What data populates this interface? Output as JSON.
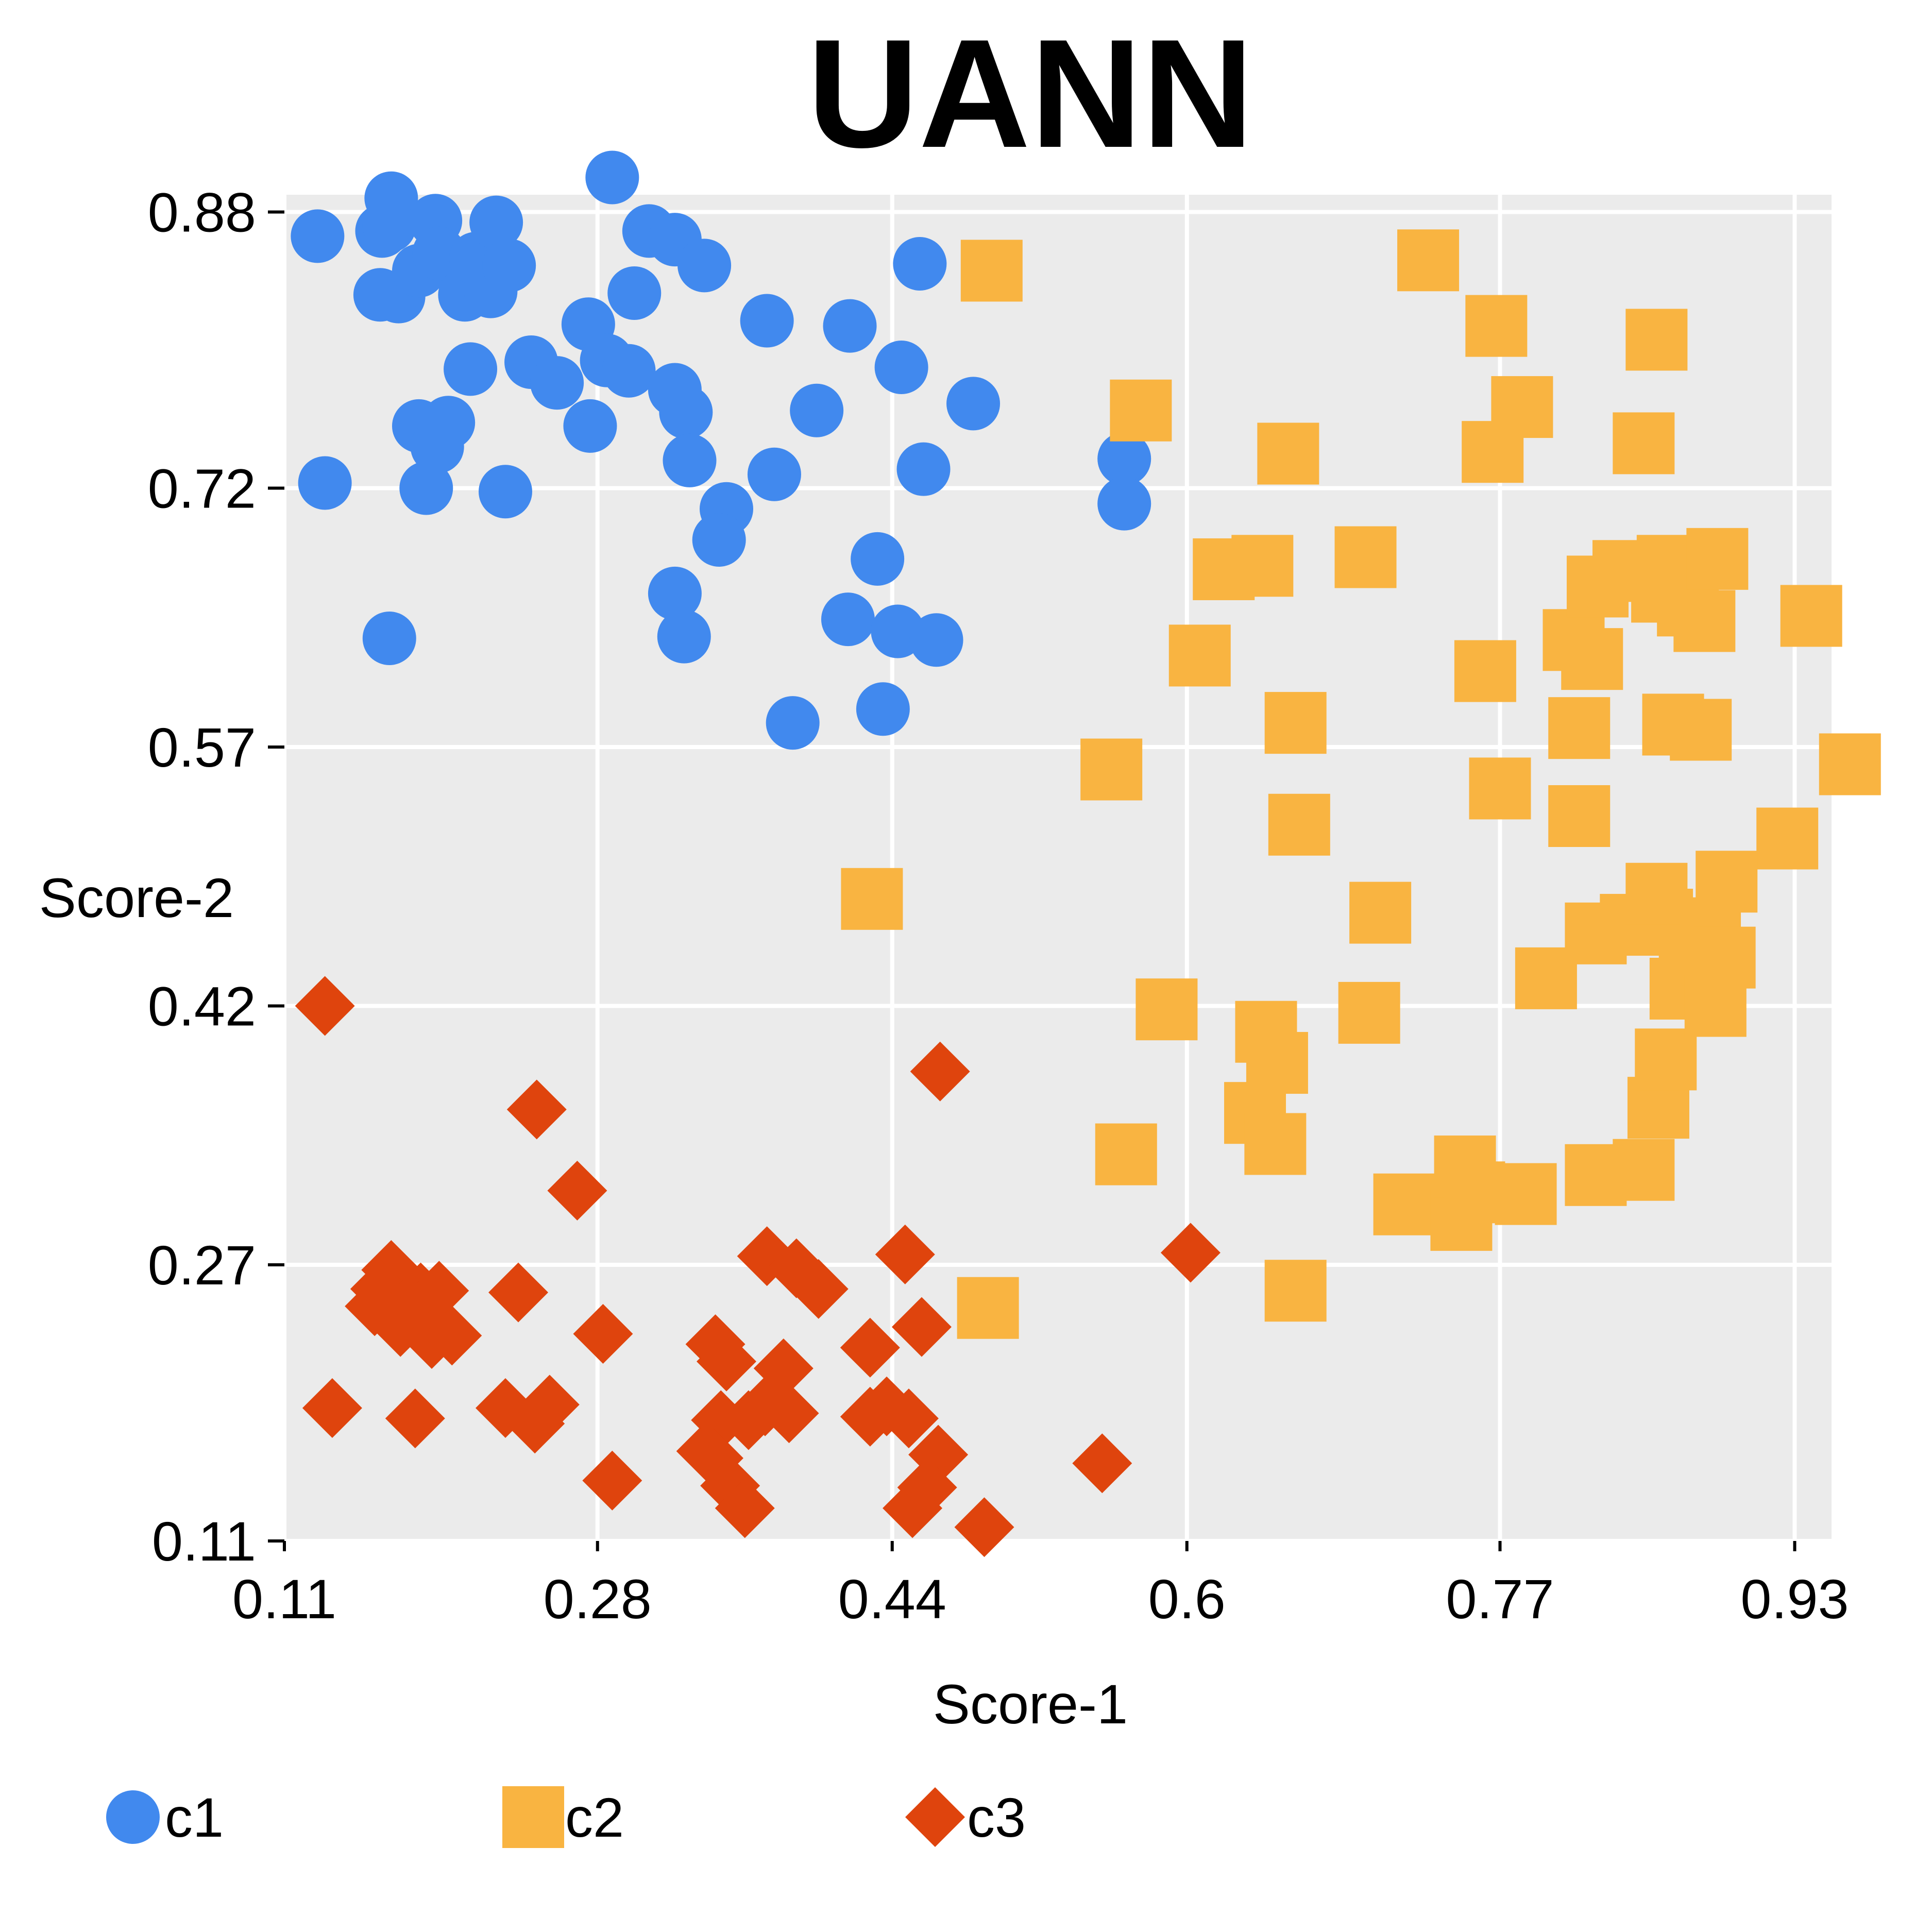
{
  "chart_data": {
    "type": "scatter",
    "title": "UANN",
    "xlabel": "Score-1",
    "ylabel": "Score-2",
    "xlim": [
      0.11,
      0.95
    ],
    "ylim": [
      0.11,
      0.89
    ],
    "x_ticks": [
      0.11,
      0.28,
      0.44,
      0.6,
      0.77,
      0.93
    ],
    "x_tick_labels": [
      "0.11",
      "0.28",
      "0.44",
      "0.6",
      "0.77",
      "0.93"
    ],
    "y_ticks": [
      0.11,
      0.27,
      0.42,
      0.57,
      0.72,
      0.88
    ],
    "y_tick_labels": [
      "0.11",
      "0.27",
      "0.42",
      "0.57",
      "0.72",
      "0.88"
    ],
    "grid": true,
    "legend_position": "bottom-left",
    "series": [
      {
        "name": "c1",
        "marker": "circle",
        "color": "#4189EE",
        "points": [
          [
            0.128,
            0.866
          ],
          [
            0.132,
            0.723
          ],
          [
            0.168,
            0.888
          ],
          [
            0.163,
            0.869
          ],
          [
            0.167,
            0.872
          ],
          [
            0.162,
            0.832
          ],
          [
            0.172,
            0.831
          ],
          [
            0.183,
            0.846
          ],
          [
            0.192,
            0.875
          ],
          [
            0.194,
            0.856
          ],
          [
            0.208,
            0.832
          ],
          [
            0.214,
            0.853
          ],
          [
            0.225,
            0.874
          ],
          [
            0.222,
            0.834
          ],
          [
            0.232,
            0.849
          ],
          [
            0.211,
            0.789
          ],
          [
            0.183,
            0.756
          ],
          [
            0.199,
            0.758
          ],
          [
            0.193,
            0.744
          ],
          [
            0.187,
            0.72
          ],
          [
            0.23,
            0.718
          ],
          [
            0.244,
            0.793
          ],
          [
            0.258,
            0.781
          ],
          [
            0.275,
            0.815
          ],
          [
            0.285,
            0.794
          ],
          [
            0.297,
            0.788
          ],
          [
            0.3,
            0.833
          ],
          [
            0.276,
            0.756
          ],
          [
            0.288,
            0.9
          ],
          [
            0.308,
            0.869
          ],
          [
            0.322,
            0.864
          ],
          [
            0.322,
            0.777
          ],
          [
            0.328,
            0.764
          ],
          [
            0.33,
            0.736
          ],
          [
            0.338,
            0.849
          ],
          [
            0.35,
            0.708
          ],
          [
            0.346,
            0.69
          ],
          [
            0.376,
            0.728
          ],
          [
            0.372,
            0.817
          ],
          [
            0.399,
            0.765
          ],
          [
            0.417,
            0.814
          ],
          [
            0.445,
            0.79
          ],
          [
            0.455,
            0.85
          ],
          [
            0.457,
            0.731
          ],
          [
            0.484,
            0.769
          ],
          [
            0.566,
            0.737
          ],
          [
            0.566,
            0.711
          ],
          [
            0.322,
            0.659
          ],
          [
            0.327,
            0.634
          ],
          [
            0.416,
            0.644
          ],
          [
            0.432,
            0.679
          ],
          [
            0.443,
            0.637
          ],
          [
            0.464,
            0.632
          ],
          [
            0.435,
            0.592
          ],
          [
            0.386,
            0.584
          ],
          [
            0.167,
            0.633
          ]
        ]
      },
      {
        "name": "c2",
        "marker": "square",
        "color": "#F9B441",
        "points": [
          [
            0.494,
            0.846
          ],
          [
            0.575,
            0.765
          ],
          [
            0.655,
            0.74
          ],
          [
            0.731,
            0.852
          ],
          [
            0.768,
            0.814
          ],
          [
            0.782,
            0.767
          ],
          [
            0.766,
            0.741
          ],
          [
            0.855,
            0.806
          ],
          [
            0.848,
            0.746
          ],
          [
            0.62,
            0.673
          ],
          [
            0.641,
            0.675
          ],
          [
            0.697,
            0.68
          ],
          [
            0.607,
            0.623
          ],
          [
            0.659,
            0.584
          ],
          [
            0.661,
            0.525
          ],
          [
            0.559,
            0.557
          ],
          [
            0.429,
            0.482
          ],
          [
            0.762,
            0.614
          ],
          [
            0.77,
            0.546
          ],
          [
            0.81,
            0.632
          ],
          [
            0.823,
            0.663
          ],
          [
            0.82,
            0.621
          ],
          [
            0.813,
            0.581
          ],
          [
            0.813,
            0.53
          ],
          [
            0.837,
            0.672
          ],
          [
            0.858,
            0.66
          ],
          [
            0.861,
            0.675
          ],
          [
            0.872,
            0.652
          ],
          [
            0.888,
            0.679
          ],
          [
            0.881,
            0.643
          ],
          [
            0.864,
            0.583
          ],
          [
            0.879,
            0.58
          ],
          [
            0.939,
            0.646
          ],
          [
            0.96,
            0.56
          ],
          [
            0.926,
            0.517
          ],
          [
            0.705,
            0.474
          ],
          [
            0.699,
            0.416
          ],
          [
            0.589,
            0.418
          ],
          [
            0.643,
            0.405
          ],
          [
            0.649,
            0.387
          ],
          [
            0.637,
            0.358
          ],
          [
            0.648,
            0.34
          ],
          [
            0.567,
            0.334
          ],
          [
            0.718,
            0.305
          ],
          [
            0.749,
            0.296
          ],
          [
            0.751,
            0.327
          ],
          [
            0.756,
            0.312
          ],
          [
            0.784,
            0.311
          ],
          [
            0.822,
            0.322
          ],
          [
            0.848,
            0.325
          ],
          [
            0.856,
            0.361
          ],
          [
            0.86,
            0.389
          ],
          [
            0.868,
            0.43
          ],
          [
            0.873,
            0.451
          ],
          [
            0.858,
            0.47
          ],
          [
            0.822,
            0.462
          ],
          [
            0.841,
            0.467
          ],
          [
            0.855,
            0.485
          ],
          [
            0.884,
            0.465
          ],
          [
            0.893,
            0.492
          ],
          [
            0.892,
            0.448
          ],
          [
            0.887,
            0.42
          ],
          [
            0.795,
            0.436
          ],
          [
            0.659,
            0.255
          ],
          [
            0.492,
            0.245
          ]
        ]
      },
      {
        "name": "c3",
        "marker": "diamond",
        "color": "#DF440D",
        "points": [
          [
            0.132,
            0.42
          ],
          [
            0.247,
            0.36
          ],
          [
            0.269,
            0.313
          ],
          [
            0.466,
            0.382
          ],
          [
            0.602,
            0.277
          ],
          [
            0.168,
            0.267
          ],
          [
            0.162,
            0.256
          ],
          [
            0.159,
            0.246
          ],
          [
            0.184,
            0.254
          ],
          [
            0.194,
            0.255
          ],
          [
            0.173,
            0.234
          ],
          [
            0.19,
            0.227
          ],
          [
            0.201,
            0.229
          ],
          [
            0.237,
            0.254
          ],
          [
            0.283,
            0.23
          ],
          [
            0.136,
            0.187
          ],
          [
            0.181,
            0.181
          ],
          [
            0.23,
            0.187
          ],
          [
            0.246,
            0.178
          ],
          [
            0.254,
            0.189
          ],
          [
            0.288,
            0.145
          ],
          [
            0.344,
            0.224
          ],
          [
            0.35,
            0.214
          ],
          [
            0.372,
            0.275
          ],
          [
            0.388,
            0.268
          ],
          [
            0.4,
            0.256
          ],
          [
            0.381,
            0.21
          ],
          [
            0.428,
            0.222
          ],
          [
            0.447,
            0.276
          ],
          [
            0.456,
            0.234
          ],
          [
            0.347,
            0.18
          ],
          [
            0.362,
            0.18
          ],
          [
            0.371,
            0.188
          ],
          [
            0.384,
            0.184
          ],
          [
            0.343,
            0.158
          ],
          [
            0.339,
            0.162
          ],
          [
            0.352,
            0.142
          ],
          [
            0.36,
            0.129
          ],
          [
            0.428,
            0.182
          ],
          [
            0.437,
            0.188
          ],
          [
            0.449,
            0.181
          ],
          [
            0.465,
            0.16
          ],
          [
            0.459,
            0.141
          ],
          [
            0.451,
            0.129
          ],
          [
            0.49,
            0.118
          ],
          [
            0.554,
            0.155
          ]
        ]
      }
    ]
  }
}
